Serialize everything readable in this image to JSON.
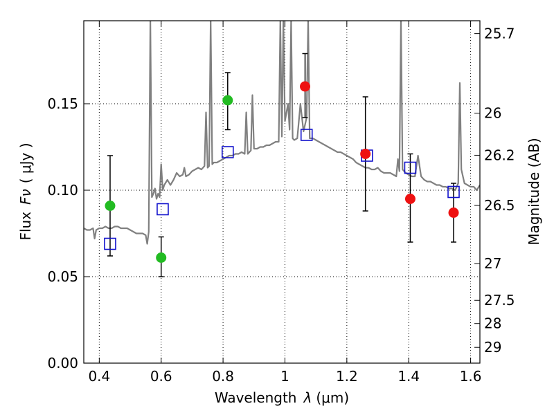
{
  "chart_data": {
    "type": "scatter",
    "xlabel_prefix": "Wavelength",
    "xlabel_symbol": "λ",
    "xlabel_unit": "(μm)",
    "ylabel_prefix": "Flux",
    "ylabel_symbol": "Fν",
    "ylabel_unit": "( μJy )",
    "y2label": "Magnitude (AB)",
    "xlim": [
      0.35,
      1.63
    ],
    "ylim": [
      0.0,
      0.198
    ],
    "x_ticks": [
      0.4,
      0.6,
      0.8,
      1.0,
      1.2,
      1.4,
      1.6
    ],
    "x_tick_labels": [
      "0.4",
      "0.6",
      "0.8",
      "1",
      "1.2",
      "1.4",
      "1.6"
    ],
    "y_ticks": [
      0.0,
      0.05,
      0.1,
      0.15
    ],
    "y_tick_labels": [
      "0.00",
      "0.05",
      "0.10",
      "0.15"
    ],
    "y2_ticks": [
      {
        "mag": 25.7,
        "label": "25.7"
      },
      {
        "mag": 26.0,
        "label": "26"
      },
      {
        "mag": 26.2,
        "label": "26.2"
      },
      {
        "mag": 26.5,
        "label": "26.5"
      },
      {
        "mag": 27.0,
        "label": "27"
      },
      {
        "mag": 27.5,
        "label": "27.5"
      },
      {
        "mag": 28.0,
        "label": "28"
      },
      {
        "mag": 29.0,
        "label": "29"
      }
    ],
    "grid": true,
    "colors": {
      "spectrum": "#808080",
      "green": "#22bb22",
      "red": "#ee1111",
      "model": "#1111cc",
      "errorbar": "#000000"
    },
    "spectrum_points": [
      [
        0.35,
        0.078
      ],
      [
        0.36,
        0.077
      ],
      [
        0.37,
        0.077
      ],
      [
        0.38,
        0.078
      ],
      [
        0.385,
        0.072
      ],
      [
        0.39,
        0.077
      ],
      [
        0.4,
        0.078
      ],
      [
        0.41,
        0.078
      ],
      [
        0.42,
        0.079
      ],
      [
        0.43,
        0.078
      ],
      [
        0.44,
        0.078
      ],
      [
        0.45,
        0.079
      ],
      [
        0.46,
        0.079
      ],
      [
        0.47,
        0.078
      ],
      [
        0.48,
        0.078
      ],
      [
        0.49,
        0.078
      ],
      [
        0.5,
        0.077
      ],
      [
        0.51,
        0.076
      ],
      [
        0.52,
        0.075
      ],
      [
        0.53,
        0.075
      ],
      [
        0.54,
        0.075
      ],
      [
        0.55,
        0.074
      ],
      [
        0.555,
        0.069
      ],
      [
        0.56,
        0.076
      ],
      [
        0.565,
        0.198
      ],
      [
        0.57,
        0.096
      ],
      [
        0.575,
        0.098
      ],
      [
        0.58,
        0.101
      ],
      [
        0.585,
        0.095
      ],
      [
        0.59,
        0.098
      ],
      [
        0.595,
        0.096
      ],
      [
        0.6,
        0.115
      ],
      [
        0.605,
        0.1
      ],
      [
        0.61,
        0.103
      ],
      [
        0.62,
        0.106
      ],
      [
        0.63,
        0.103
      ],
      [
        0.64,
        0.106
      ],
      [
        0.65,
        0.11
      ],
      [
        0.66,
        0.108
      ],
      [
        0.67,
        0.109
      ],
      [
        0.675,
        0.113
      ],
      [
        0.68,
        0.108
      ],
      [
        0.69,
        0.109
      ],
      [
        0.7,
        0.111
      ],
      [
        0.71,
        0.112
      ],
      [
        0.72,
        0.113
      ],
      [
        0.73,
        0.112
      ],
      [
        0.74,
        0.114
      ],
      [
        0.745,
        0.145
      ],
      [
        0.75,
        0.113
      ],
      [
        0.755,
        0.114
      ],
      [
        0.76,
        0.198
      ],
      [
        0.765,
        0.115
      ],
      [
        0.77,
        0.116
      ],
      [
        0.78,
        0.116
      ],
      [
        0.79,
        0.117
      ],
      [
        0.8,
        0.118
      ],
      [
        0.81,
        0.119
      ],
      [
        0.82,
        0.12
      ],
      [
        0.83,
        0.12
      ],
      [
        0.84,
        0.121
      ],
      [
        0.85,
        0.121
      ],
      [
        0.86,
        0.122
      ],
      [
        0.87,
        0.121
      ],
      [
        0.875,
        0.145
      ],
      [
        0.88,
        0.121
      ],
      [
        0.89,
        0.123
      ],
      [
        0.895,
        0.155
      ],
      [
        0.9,
        0.124
      ],
      [
        0.91,
        0.124
      ],
      [
        0.92,
        0.125
      ],
      [
        0.93,
        0.125
      ],
      [
        0.94,
        0.126
      ],
      [
        0.95,
        0.126
      ],
      [
        0.96,
        0.127
      ],
      [
        0.97,
        0.128
      ],
      [
        0.98,
        0.128
      ],
      [
        0.985,
        0.198
      ],
      [
        0.99,
        0.131
      ],
      [
        0.995,
        0.198
      ],
      [
        1.0,
        0.14
      ],
      [
        1.01,
        0.15
      ],
      [
        1.015,
        0.135
      ],
      [
        1.02,
        0.198
      ],
      [
        1.025,
        0.13
      ],
      [
        1.03,
        0.129
      ],
      [
        1.04,
        0.13
      ],
      [
        1.05,
        0.15
      ],
      [
        1.06,
        0.134
      ],
      [
        1.07,
        0.142
      ],
      [
        1.075,
        0.198
      ],
      [
        1.08,
        0.13
      ],
      [
        1.09,
        0.13
      ],
      [
        1.1,
        0.129
      ],
      [
        1.11,
        0.128
      ],
      [
        1.12,
        0.127
      ],
      [
        1.13,
        0.126
      ],
      [
        1.14,
        0.125
      ],
      [
        1.15,
        0.124
      ],
      [
        1.16,
        0.123
      ],
      [
        1.17,
        0.122
      ],
      [
        1.18,
        0.122
      ],
      [
        1.19,
        0.121
      ],
      [
        1.2,
        0.12
      ],
      [
        1.21,
        0.119
      ],
      [
        1.22,
        0.118
      ],
      [
        1.23,
        0.116
      ],
      [
        1.24,
        0.115
      ],
      [
        1.25,
        0.114
      ],
      [
        1.26,
        0.113
      ],
      [
        1.27,
        0.113
      ],
      [
        1.28,
        0.112
      ],
      [
        1.29,
        0.112
      ],
      [
        1.3,
        0.113
      ],
      [
        1.31,
        0.111
      ],
      [
        1.32,
        0.11
      ],
      [
        1.33,
        0.11
      ],
      [
        1.34,
        0.11
      ],
      [
        1.35,
        0.109
      ],
      [
        1.36,
        0.108
      ],
      [
        1.365,
        0.118
      ],
      [
        1.37,
        0.111
      ],
      [
        1.375,
        0.198
      ],
      [
        1.38,
        0.112
      ],
      [
        1.39,
        0.11
      ],
      [
        1.4,
        0.109
      ],
      [
        1.41,
        0.108
      ],
      [
        1.42,
        0.108
      ],
      [
        1.43,
        0.12
      ],
      [
        1.44,
        0.108
      ],
      [
        1.45,
        0.106
      ],
      [
        1.46,
        0.105
      ],
      [
        1.47,
        0.105
      ],
      [
        1.48,
        0.104
      ],
      [
        1.49,
        0.103
      ],
      [
        1.5,
        0.103
      ],
      [
        1.51,
        0.102
      ],
      [
        1.52,
        0.102
      ],
      [
        1.53,
        0.101
      ],
      [
        1.54,
        0.101
      ],
      [
        1.55,
        0.1
      ],
      [
        1.56,
        0.104
      ],
      [
        1.565,
        0.162
      ],
      [
        1.57,
        0.112
      ],
      [
        1.58,
        0.104
      ],
      [
        1.59,
        0.103
      ],
      [
        1.6,
        0.102
      ],
      [
        1.61,
        0.102
      ],
      [
        1.62,
        0.1
      ],
      [
        1.63,
        0.103
      ]
    ],
    "green_points": [
      {
        "x": 0.435,
        "y": 0.091,
        "lo": 0.062,
        "hi": 0.12
      },
      {
        "x": 0.6,
        "y": 0.061,
        "lo": 0.05,
        "hi": 0.073
      },
      {
        "x": 0.815,
        "y": 0.152,
        "lo": 0.135,
        "hi": 0.168
      }
    ],
    "red_points": [
      {
        "x": 1.065,
        "y": 0.16,
        "lo": 0.142,
        "hi": 0.179
      },
      {
        "x": 1.26,
        "y": 0.121,
        "lo": 0.088,
        "hi": 0.154
      },
      {
        "x": 1.405,
        "y": 0.095,
        "lo": 0.07,
        "hi": 0.121
      },
      {
        "x": 1.545,
        "y": 0.087,
        "lo": 0.07,
        "hi": 0.104
      }
    ],
    "model_points": [
      {
        "x": 0.435,
        "y": 0.069
      },
      {
        "x": 0.605,
        "y": 0.089
      },
      {
        "x": 0.815,
        "y": 0.122
      },
      {
        "x": 1.07,
        "y": 0.132
      },
      {
        "x": 1.265,
        "y": 0.12
      },
      {
        "x": 1.405,
        "y": 0.113
      },
      {
        "x": 1.545,
        "y": 0.099
      }
    ]
  }
}
